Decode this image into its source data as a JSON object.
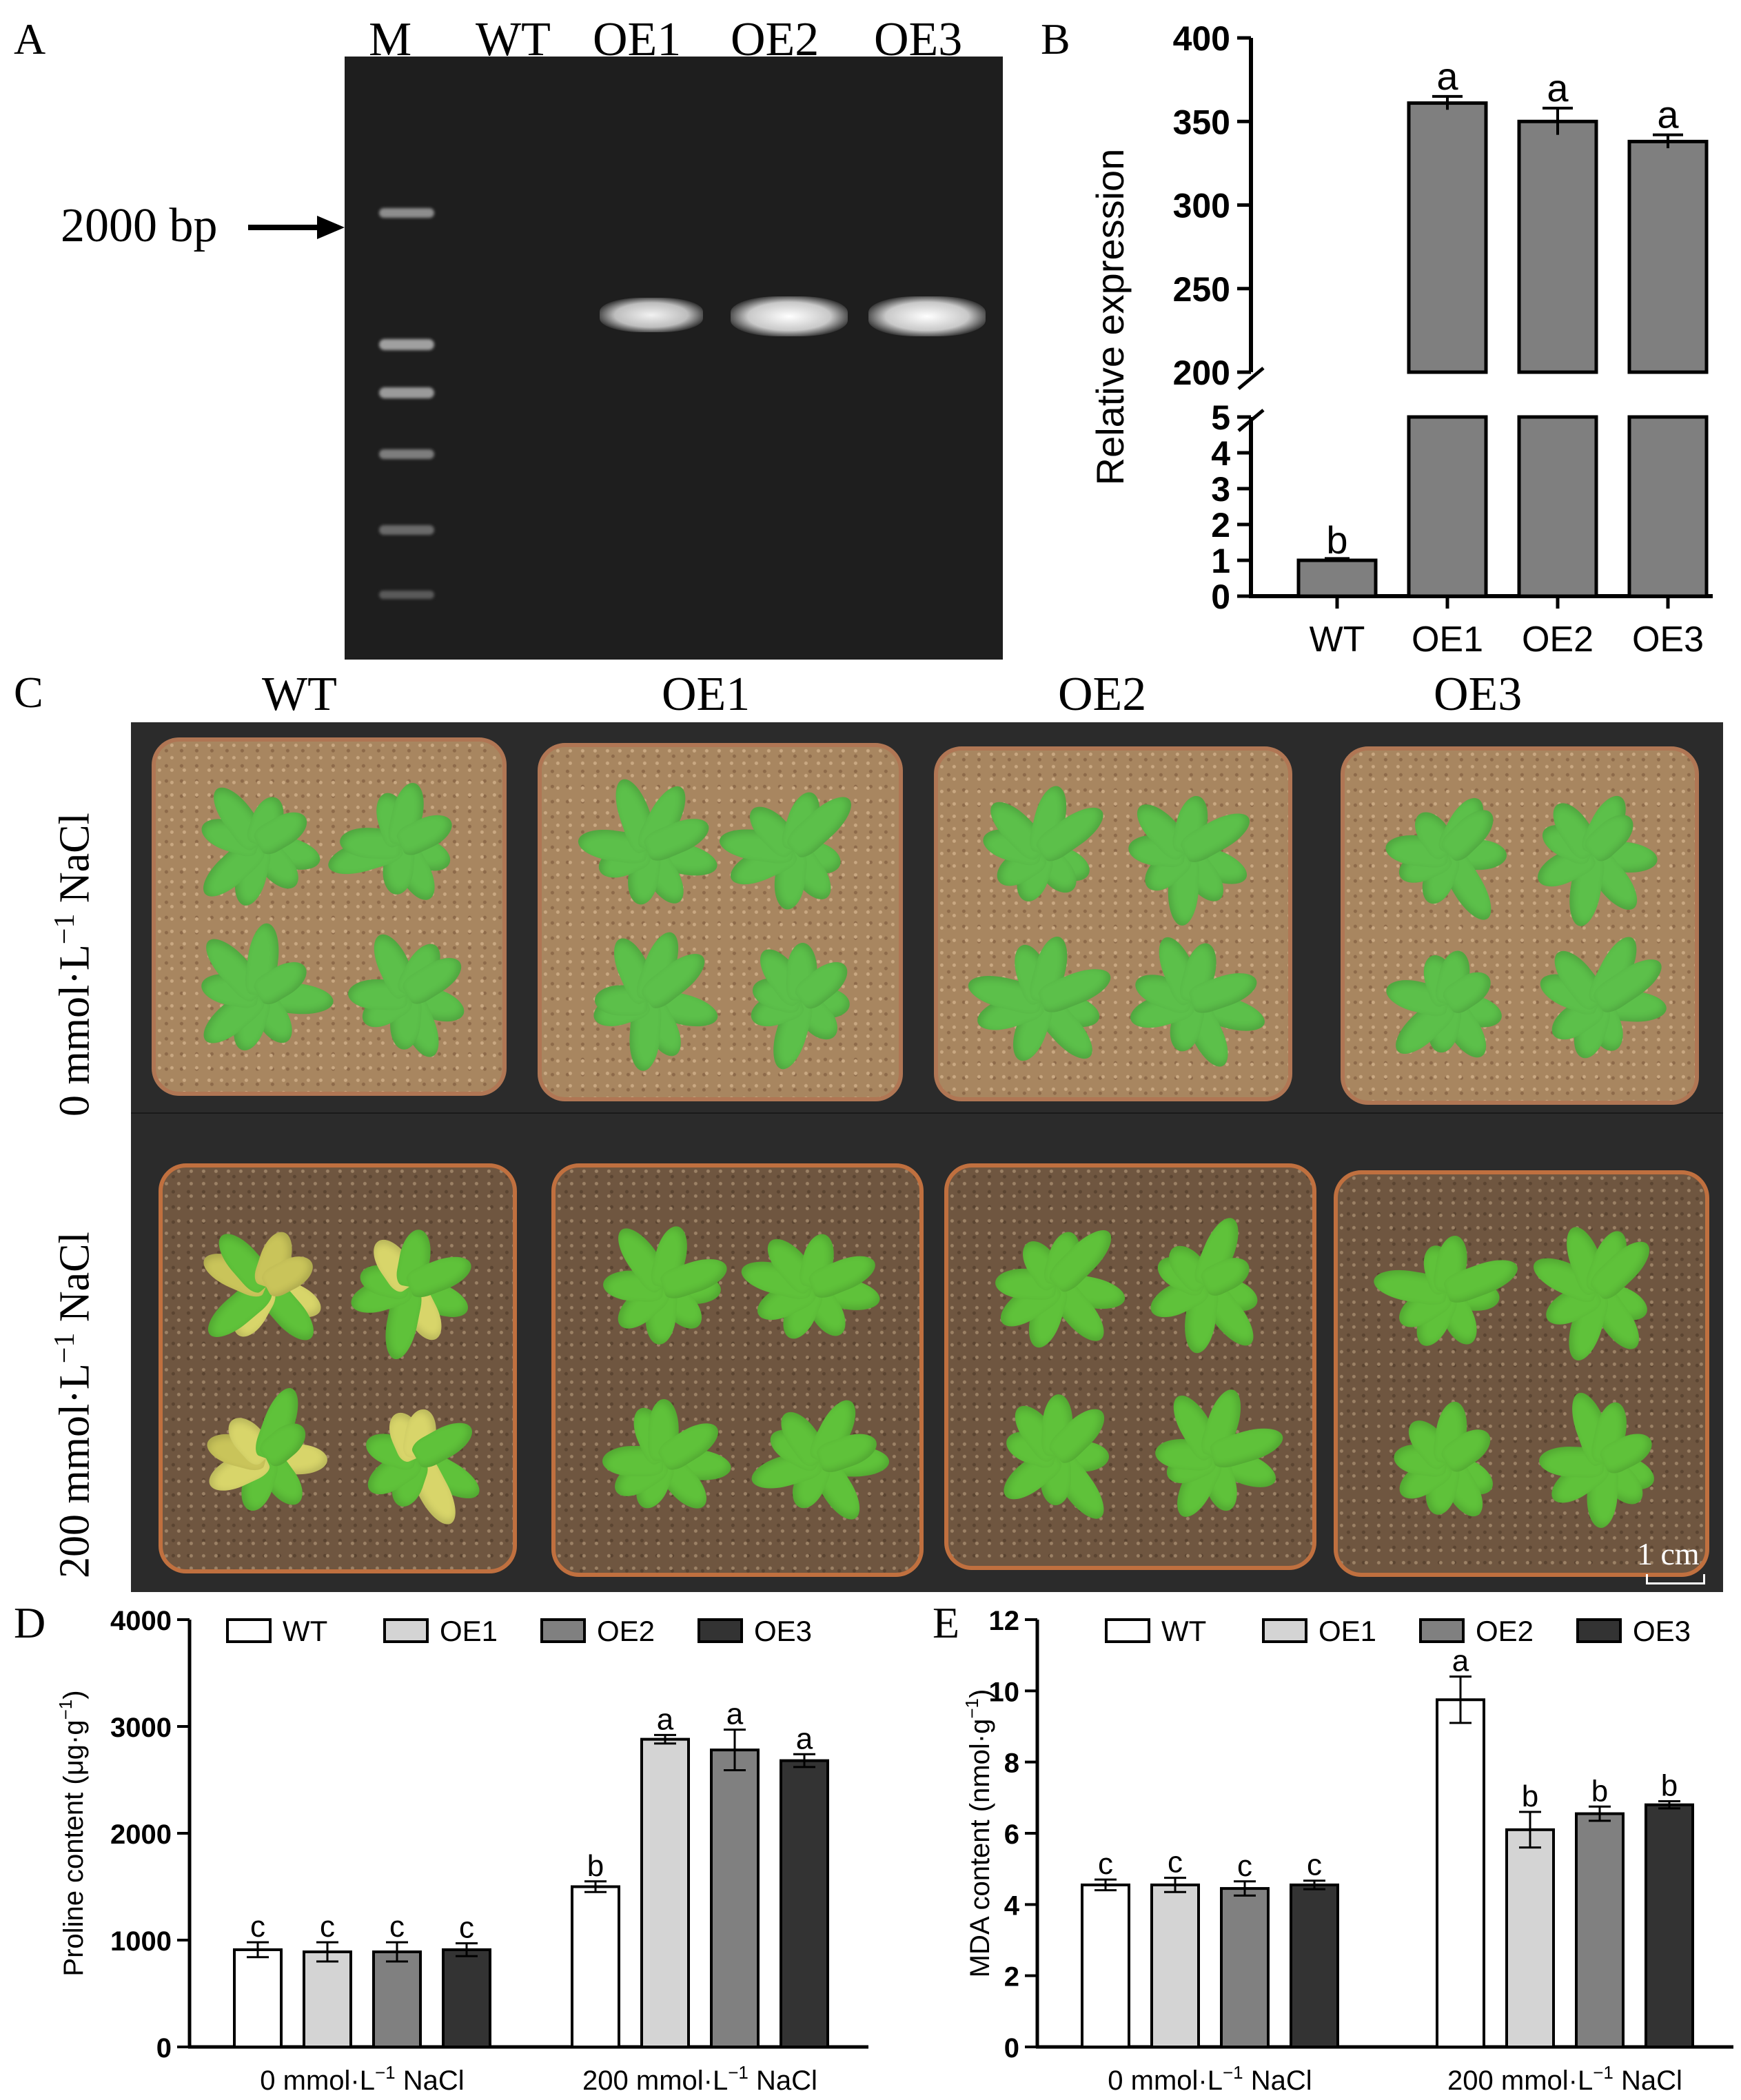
{
  "panels": {
    "A": {
      "letter": "A",
      "lanes": [
        "M",
        "WT",
        "OE1",
        "OE2",
        "OE3"
      ],
      "marker_label": "2000 bp"
    },
    "B": {
      "letter": "B",
      "chart_data": {
        "type": "bar",
        "categories": [
          "WT",
          "OE1",
          "OE2",
          "OE3"
        ],
        "values": [
          1,
          361,
          350,
          338
        ],
        "errors": [
          0.05,
          4,
          8,
          4
        ],
        "sig_letters": [
          "b",
          "a",
          "a",
          "a"
        ],
        "ylabel": "Relative expression",
        "y_broken_axis": {
          "lower": [
            0,
            5
          ],
          "upper": [
            200,
            400
          ]
        },
        "yticks_lower": [
          "0",
          "1",
          "2",
          "3",
          "4",
          "5"
        ],
        "yticks_upper": [
          "200",
          "250",
          "300",
          "350",
          "400"
        ],
        "bar_color": "#7f7f7f"
      }
    },
    "C": {
      "letter": "C",
      "columns": [
        "WT",
        "OE1",
        "OE2",
        "OE3"
      ],
      "rows": [
        {
          "prefix": "0 mmol·L",
          "sup": "−1",
          "suffix": " NaCl"
        },
        {
          "prefix": "200 mmol·L",
          "sup": "−1",
          "suffix": " NaCl"
        }
      ],
      "scale_bar": "1 cm"
    },
    "D": {
      "letter": "D",
      "chart_data": {
        "type": "bar",
        "categories": [
          {
            "prefix": "0 mmol·L",
            "sup": "−1",
            "suffix": " NaCl"
          },
          {
            "prefix": "200 mmol·L",
            "sup": "−1",
            "suffix": " NaCl"
          }
        ],
        "series": [
          {
            "name": "WT",
            "values": [
              910,
              1500
            ],
            "errors": [
              70,
              50
            ],
            "letters": [
              "c",
              "b"
            ],
            "color": "#ffffff"
          },
          {
            "name": "OE1",
            "values": [
              890,
              2880
            ],
            "errors": [
              90,
              40
            ],
            "letters": [
              "c",
              "a"
            ],
            "color": "#d4d4d4"
          },
          {
            "name": "OE2",
            "values": [
              890,
              2780
            ],
            "errors": [
              90,
              190
            ],
            "letters": [
              "c",
              "a"
            ],
            "color": "#808080"
          },
          {
            "name": "OE3",
            "values": [
              910,
              2680
            ],
            "errors": [
              60,
              60
            ],
            "letters": [
              "c",
              "a"
            ],
            "color": "#333333"
          }
        ],
        "ylabel": {
          "text": "Proline content (μg·g",
          "sup": "−1",
          "end": ")"
        },
        "ylim": [
          0,
          4000
        ],
        "yticks": [
          "0",
          "1000",
          "2000",
          "3000",
          "4000"
        ]
      }
    },
    "E": {
      "letter": "E",
      "chart_data": {
        "type": "bar",
        "categories": [
          {
            "prefix": "0 mmol·L",
            "sup": "−1",
            "suffix": " NaCl"
          },
          {
            "prefix": "200 mmol·L",
            "sup": "−1",
            "suffix": " NaCl"
          }
        ],
        "series": [
          {
            "name": "WT",
            "values": [
              4.55,
              9.75
            ],
            "errors": [
              0.15,
              0.65
            ],
            "letters": [
              "c",
              "a"
            ],
            "color": "#ffffff"
          },
          {
            "name": "OE1",
            "values": [
              4.55,
              6.1
            ],
            "errors": [
              0.2,
              0.5
            ],
            "letters": [
              "c",
              "b"
            ],
            "color": "#d4d4d4"
          },
          {
            "name": "OE2",
            "values": [
              4.45,
              6.55
            ],
            "errors": [
              0.2,
              0.2
            ],
            "letters": [
              "c",
              "b"
            ],
            "color": "#808080"
          },
          {
            "name": "OE3",
            "values": [
              4.55,
              6.8
            ],
            "errors": [
              0.12,
              0.1
            ],
            "letters": [
              "c",
              "b"
            ],
            "color": "#333333"
          }
        ],
        "ylabel": {
          "text": "MDA content (nmol·g",
          "sup": "−1",
          "end": ")"
        },
        "ylim": [
          0,
          12
        ],
        "yticks": [
          "0",
          "2",
          "4",
          "6",
          "8",
          "10",
          "12"
        ]
      }
    }
  }
}
